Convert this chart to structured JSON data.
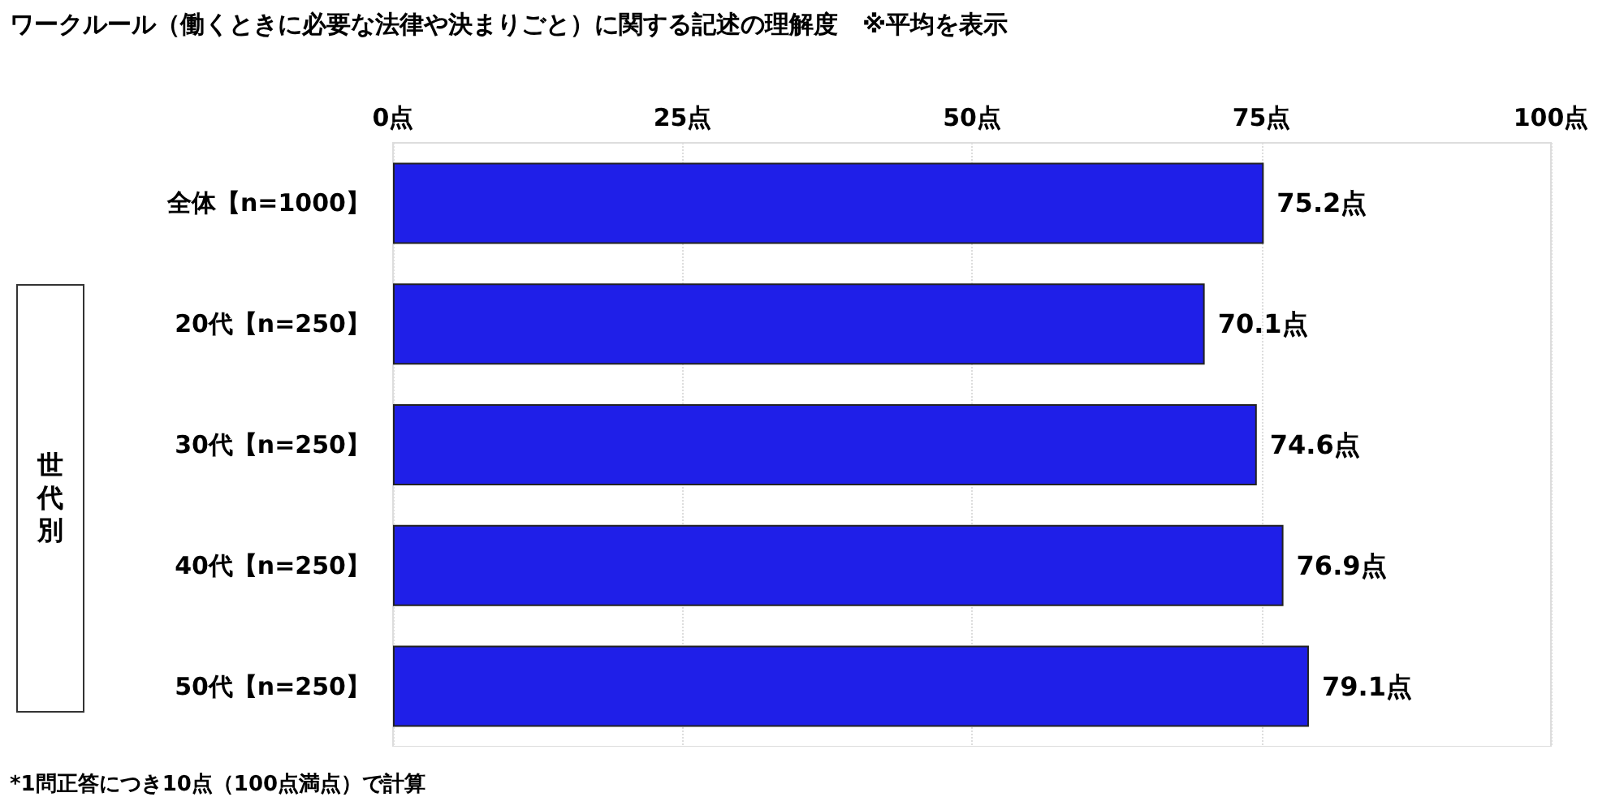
{
  "chart_data": {
    "type": "bar",
    "orientation": "horizontal",
    "title": "ワークルール（働くときに必要な法律や決まりごと）に関する記述の理解度　※平均を表示",
    "categories": [
      "全体【n=1000】",
      "20代【n=250】",
      "30代【n=250】",
      "40代【n=250】",
      "50代【n=250】"
    ],
    "values": [
      75.2,
      70.1,
      74.6,
      76.9,
      79.1
    ],
    "value_labels": [
      "75.2点",
      "70.1点",
      "74.6点",
      "76.9点",
      "79.1点"
    ],
    "color": "#1f1fe8",
    "xlim": [
      0,
      100
    ],
    "xticks": [
      {
        "value": 0,
        "label": "0点"
      },
      {
        "value": 25,
        "label": "25点"
      },
      {
        "value": 50,
        "label": "50点"
      },
      {
        "value": 75,
        "label": "75点"
      },
      {
        "value": 100,
        "label": "100点"
      }
    ],
    "grid": "x",
    "annotations": [
      "世代別",
      "*1問正答につき10点（100点満点）で計算"
    ]
  }
}
